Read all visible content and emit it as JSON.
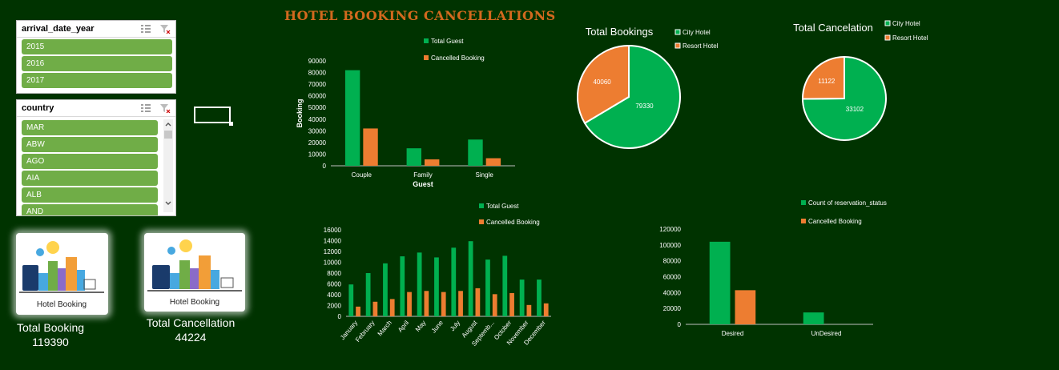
{
  "title": "HOTEL BOOKING CANCELLATIONS",
  "colors": {
    "green": "#00b050",
    "orange": "#ed7d31",
    "background": "#003300",
    "slicer_item": "#70ad47"
  },
  "slicer_year": {
    "header": "arrival_date_year",
    "items": [
      "2015",
      "2016",
      "2017"
    ]
  },
  "slicer_country": {
    "header": "country",
    "items": [
      "MAR",
      "ABW",
      "AGO",
      "AIA",
      "ALB",
      "AND"
    ]
  },
  "kpi_booking": {
    "label": "Total Booking",
    "value": "119390",
    "image_caption": "Hotel Booking"
  },
  "kpi_cancel": {
    "label": "Total Cancellation",
    "value": "44224",
    "image_caption": "Hotel Booking"
  },
  "chart_data": [
    {
      "type": "bar",
      "title": "",
      "xlabel": "Guest",
      "ylabel": "Booking",
      "categories": [
        "Couple",
        "Family",
        "Single"
      ],
      "series": [
        {
          "name": "Total Guest",
          "values": [
            82000,
            15000,
            22500
          ]
        },
        {
          "name": "Cancelled Booking",
          "values": [
            32000,
            5500,
            6500
          ]
        }
      ],
      "ylim": [
        0,
        90000
      ],
      "yticks": [
        "0",
        "10000",
        "20000",
        "30000",
        "40000",
        "50000",
        "60000",
        "70000",
        "80000",
        "90000"
      ],
      "legend": "top"
    },
    {
      "type": "pie",
      "title": "Total Bookings",
      "labels": [
        "City Hotel",
        "Resort Hotel"
      ],
      "values": [
        79330,
        40060
      ],
      "value_labels": [
        "79330",
        "40060"
      ],
      "legend": "right"
    },
    {
      "type": "pie",
      "title": "Total Cancelation",
      "labels": [
        "City Hotel",
        "Resort Hotel"
      ],
      "values": [
        33102,
        11122
      ],
      "value_labels": [
        "33102",
        "11122"
      ],
      "legend": "right"
    },
    {
      "type": "bar",
      "title": "",
      "xlabel": "",
      "ylabel": "",
      "categories": [
        "January",
        "February",
        "March",
        "April",
        "May",
        "June",
        "July",
        "August",
        "Septemb...",
        "October",
        "November",
        "December"
      ],
      "series": [
        {
          "name": "Total Guest",
          "values": [
            5900,
            8000,
            9800,
            11100,
            11800,
            10900,
            12700,
            13900,
            10500,
            11200,
            6800,
            6800
          ]
        },
        {
          "name": "Cancelled Booking",
          "values": [
            1800,
            2700,
            3200,
            4500,
            4700,
            4500,
            4700,
            5200,
            4100,
            4300,
            2100,
            2400
          ]
        }
      ],
      "ylim": [
        0,
        16000
      ],
      "yticks": [
        "0",
        "2000",
        "4000",
        "6000",
        "8000",
        "10000",
        "12000",
        "14000",
        "16000"
      ],
      "legend": "top"
    },
    {
      "type": "bar",
      "title": "",
      "xlabel": "",
      "ylabel": "",
      "categories": [
        "Desired",
        "UnDesired"
      ],
      "series": [
        {
          "name": "Count of reservation_status",
          "values": [
            104000,
            15000
          ]
        },
        {
          "name": "Cancelled Booking",
          "values": [
            43000,
            0
          ]
        }
      ],
      "ylim": [
        0,
        120000
      ],
      "yticks": [
        "0",
        "20000",
        "40000",
        "60000",
        "80000",
        "100000",
        "120000"
      ],
      "legend": "top"
    }
  ]
}
